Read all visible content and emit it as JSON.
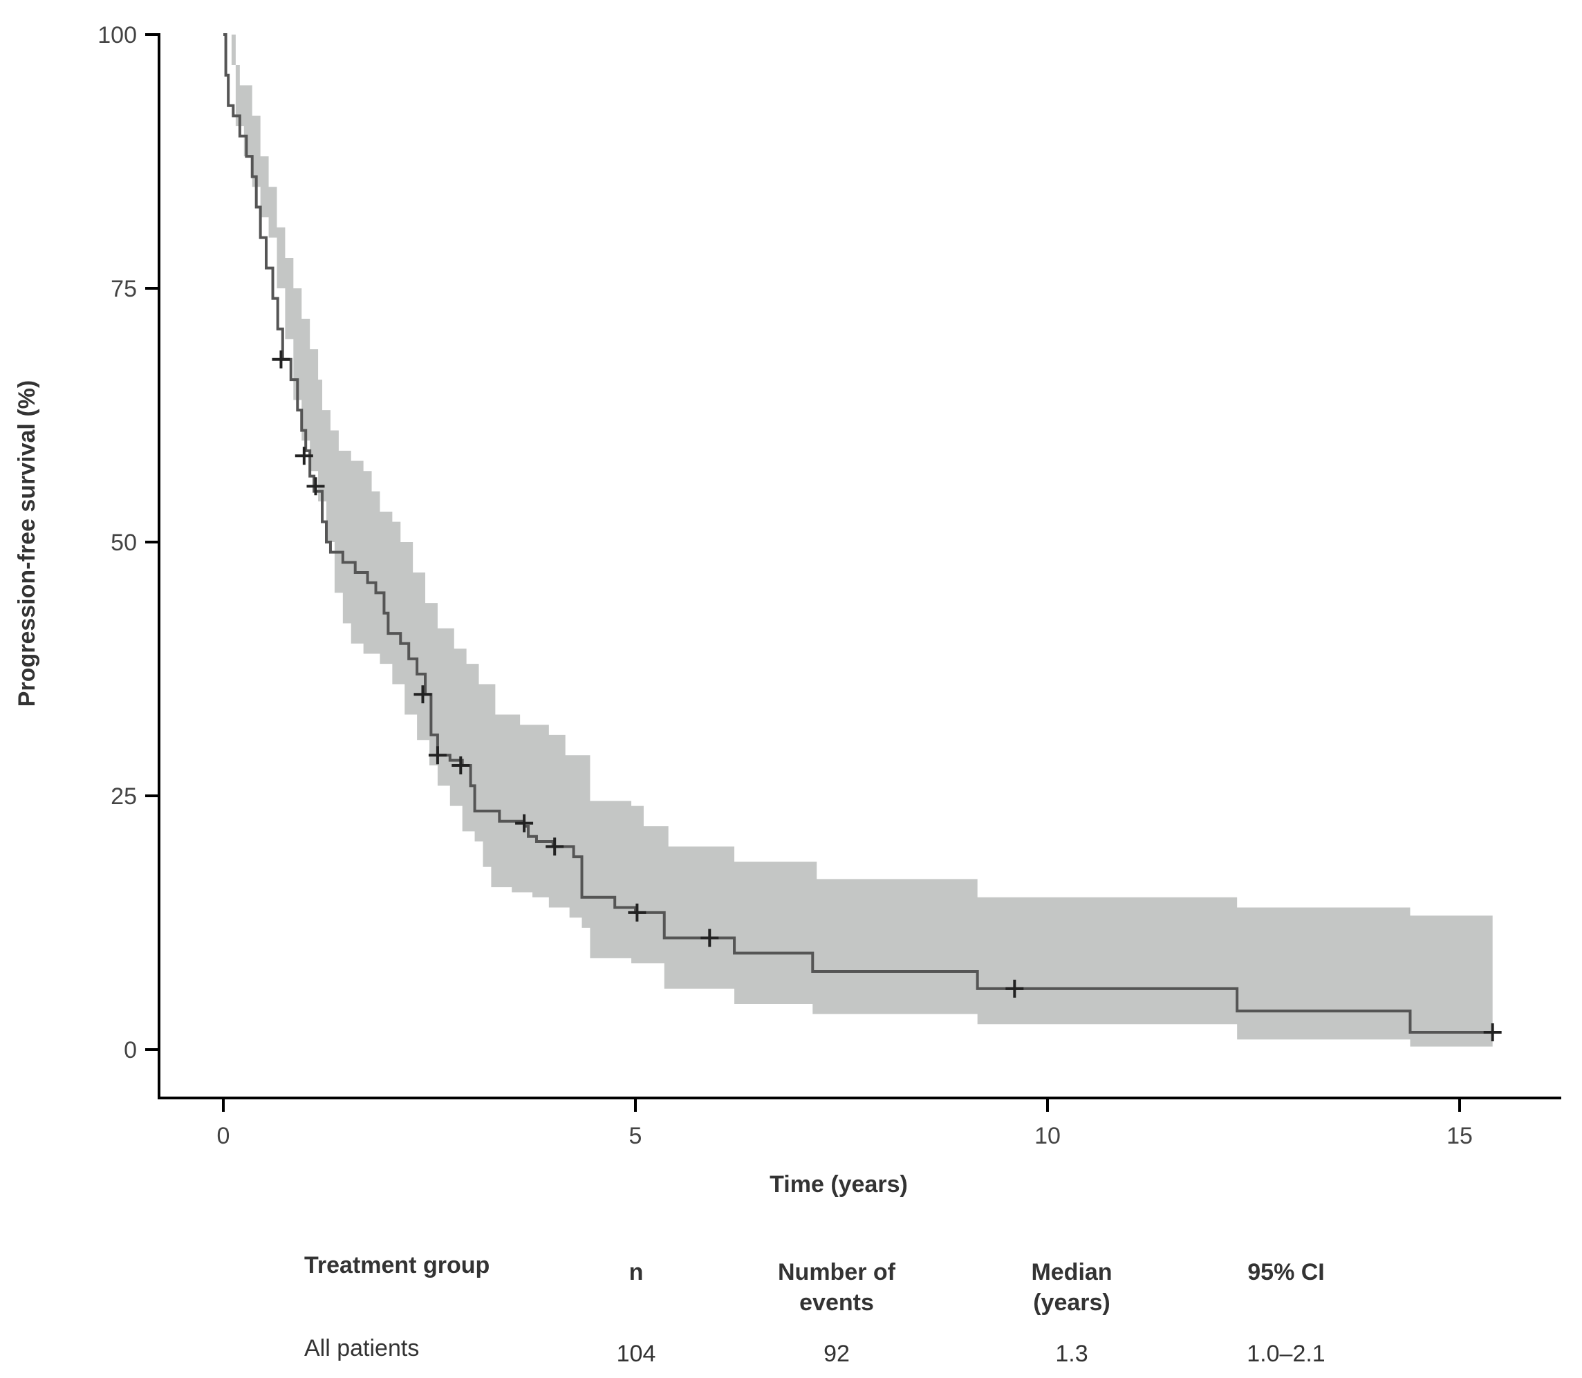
{
  "chart_data": {
    "type": "line",
    "subtype": "kaplan-meier survival curve with 95% confidence band",
    "title": "",
    "xlabel": "Time (years)",
    "ylabel": "Progression-free survival (%)",
    "xlim": [
      -0.8,
      16.2
    ],
    "ylim": [
      -5,
      100
    ],
    "x_ticks": [
      0,
      5,
      10,
      15
    ],
    "x_tick_labels": [
      "0",
      "5",
      "10",
      "15"
    ],
    "y_ticks": [
      0,
      25,
      50,
      75,
      100
    ],
    "y_tick_labels": [
      "0",
      "25",
      "50",
      "75",
      "100"
    ],
    "grid": false,
    "legend": "none",
    "colors": {
      "curve": "#555555",
      "band": "#c4c6c5",
      "censor": "#222222",
      "axis": "#000000"
    },
    "series": [
      {
        "name": "All patients",
        "step_curve": [
          [
            0,
            100
          ],
          [
            0.03,
            96
          ],
          [
            0.06,
            93
          ],
          [
            0.12,
            92
          ],
          [
            0.2,
            90
          ],
          [
            0.28,
            88
          ],
          [
            0.35,
            86
          ],
          [
            0.4,
            83
          ],
          [
            0.45,
            80
          ],
          [
            0.52,
            77
          ],
          [
            0.6,
            74
          ],
          [
            0.66,
            71
          ],
          [
            0.72,
            68
          ],
          [
            0.82,
            66
          ],
          [
            0.9,
            63
          ],
          [
            0.95,
            61
          ],
          [
            1.0,
            59
          ],
          [
            1.05,
            56.5
          ],
          [
            1.1,
            55
          ],
          [
            1.2,
            52
          ],
          [
            1.25,
            50
          ],
          [
            1.3,
            49
          ],
          [
            1.45,
            48
          ],
          [
            1.6,
            47
          ],
          [
            1.75,
            46
          ],
          [
            1.85,
            45
          ],
          [
            1.95,
            43
          ],
          [
            2.0,
            41
          ],
          [
            2.15,
            40
          ],
          [
            2.25,
            38.5
          ],
          [
            2.35,
            37
          ],
          [
            2.45,
            35
          ],
          [
            2.52,
            31
          ],
          [
            2.6,
            29
          ],
          [
            2.75,
            28.5
          ],
          [
            2.9,
            28
          ],
          [
            3.0,
            26
          ],
          [
            3.05,
            23.5
          ],
          [
            3.35,
            22.5
          ],
          [
            3.65,
            22
          ],
          [
            3.7,
            21
          ],
          [
            3.8,
            20.5
          ],
          [
            4.0,
            20
          ],
          [
            4.25,
            19
          ],
          [
            4.35,
            15
          ],
          [
            4.75,
            14
          ],
          [
            5.0,
            13.5
          ],
          [
            5.35,
            11
          ],
          [
            5.6,
            11
          ],
          [
            6.2,
            9.5
          ],
          [
            7.15,
            7.7
          ],
          [
            9.15,
            6
          ],
          [
            12.3,
            3.8
          ],
          [
            14.4,
            1.7
          ],
          [
            15.4,
            1.7
          ]
        ],
        "ci_upper": [
          [
            0,
            100
          ],
          [
            0.1,
            97
          ],
          [
            0.2,
            95
          ],
          [
            0.35,
            92
          ],
          [
            0.45,
            88
          ],
          [
            0.55,
            85
          ],
          [
            0.65,
            81
          ],
          [
            0.75,
            78
          ],
          [
            0.85,
            75
          ],
          [
            0.95,
            72
          ],
          [
            1.05,
            69
          ],
          [
            1.15,
            66
          ],
          [
            1.2,
            63
          ],
          [
            1.3,
            61
          ],
          [
            1.4,
            59
          ],
          [
            1.55,
            58
          ],
          [
            1.7,
            57
          ],
          [
            1.8,
            55
          ],
          [
            1.9,
            53
          ],
          [
            2.05,
            52
          ],
          [
            2.15,
            50
          ],
          [
            2.3,
            47
          ],
          [
            2.45,
            44
          ],
          [
            2.6,
            41.5
          ],
          [
            2.8,
            39.5
          ],
          [
            2.95,
            38
          ],
          [
            3.1,
            36
          ],
          [
            3.3,
            33
          ],
          [
            3.6,
            32
          ],
          [
            3.95,
            31
          ],
          [
            4.15,
            29
          ],
          [
            4.45,
            24.5
          ],
          [
            4.95,
            24
          ],
          [
            5.1,
            22
          ],
          [
            5.4,
            20
          ],
          [
            6.2,
            18.5
          ],
          [
            7.2,
            16.8
          ],
          [
            9.15,
            15
          ],
          [
            12.3,
            14
          ],
          [
            14.4,
            13.2
          ],
          [
            15.4,
            13.2
          ]
        ],
        "ci_lower": [
          [
            0,
            100
          ],
          [
            0.15,
            91
          ],
          [
            0.25,
            88
          ],
          [
            0.35,
            85
          ],
          [
            0.45,
            82
          ],
          [
            0.55,
            80
          ],
          [
            0.65,
            75
          ],
          [
            0.75,
            70
          ],
          [
            0.85,
            64
          ],
          [
            0.95,
            60
          ],
          [
            1.05,
            57
          ],
          [
            1.15,
            54
          ],
          [
            1.25,
            50
          ],
          [
            1.35,
            45
          ],
          [
            1.45,
            42
          ],
          [
            1.55,
            40
          ],
          [
            1.7,
            39
          ],
          [
            1.9,
            38
          ],
          [
            2.05,
            36
          ],
          [
            2.2,
            33
          ],
          [
            2.35,
            30.5
          ],
          [
            2.5,
            28
          ],
          [
            2.6,
            26
          ],
          [
            2.75,
            24
          ],
          [
            2.9,
            21.5
          ],
          [
            3.05,
            20.5
          ],
          [
            3.15,
            18
          ],
          [
            3.25,
            16
          ],
          [
            3.5,
            15.5
          ],
          [
            3.75,
            15
          ],
          [
            3.95,
            14
          ],
          [
            4.2,
            13
          ],
          [
            4.35,
            12
          ],
          [
            4.45,
            9
          ],
          [
            4.95,
            8.5
          ],
          [
            5.35,
            6
          ],
          [
            6.2,
            4.5
          ],
          [
            7.15,
            3.5
          ],
          [
            9.15,
            2.5
          ],
          [
            12.3,
            1
          ],
          [
            14.4,
            0.3
          ],
          [
            15.4,
            0.3
          ]
        ],
        "censored": [
          [
            0.7,
            68
          ],
          [
            0.98,
            58.5
          ],
          [
            1.12,
            55.5
          ],
          [
            2.42,
            35
          ],
          [
            2.6,
            29
          ],
          [
            2.88,
            28
          ],
          [
            3.65,
            22.3
          ],
          [
            4.02,
            20
          ],
          [
            5.02,
            13.5
          ],
          [
            5.9,
            11
          ],
          [
            9.6,
            6
          ],
          [
            15.4,
            1.7
          ]
        ]
      }
    ]
  },
  "summary_table": {
    "headers": {
      "group": "Treatment group",
      "n": "n",
      "events_line1": "Number of",
      "events_line2": "events",
      "median_line1": "Median",
      "median_line2": "(years)",
      "ci": "95% CI"
    },
    "rows": [
      {
        "group": "All patients",
        "n": "104",
        "events": "92",
        "median": "1.3",
        "ci": "1.0–2.1"
      }
    ]
  }
}
